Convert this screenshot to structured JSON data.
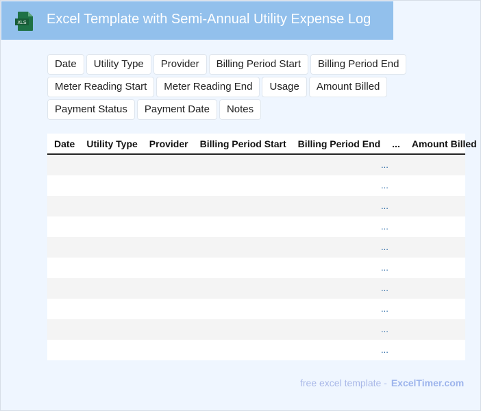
{
  "header": {
    "title": "Excel Template with Semi-Annual Utility Expense Log",
    "icon": "xls-file-icon",
    "icon_label": "XLS"
  },
  "fields": [
    "Date",
    "Utility Type",
    "Provider",
    "Billing Period Start",
    "Billing Period End",
    "Meter Reading Start",
    "Meter Reading End",
    "Usage",
    "Amount Billed",
    "Payment Status",
    "Payment Date",
    "Notes"
  ],
  "table": {
    "headers": [
      "Date",
      "Utility Type",
      "Provider",
      "Billing Period Start",
      "Billing Period End",
      "...",
      "Amount Billed"
    ],
    "rows": [
      "...",
      "...",
      "...",
      "...",
      "...",
      "...",
      "...",
      "...",
      "...",
      "..."
    ]
  },
  "footer": {
    "text": "free excel template -",
    "brand": "ExcelTimer.com"
  },
  "colors": {
    "header_bg": "#92c0ec",
    "page_bg": "#eff6ff",
    "excel_green": "#1e7145"
  }
}
